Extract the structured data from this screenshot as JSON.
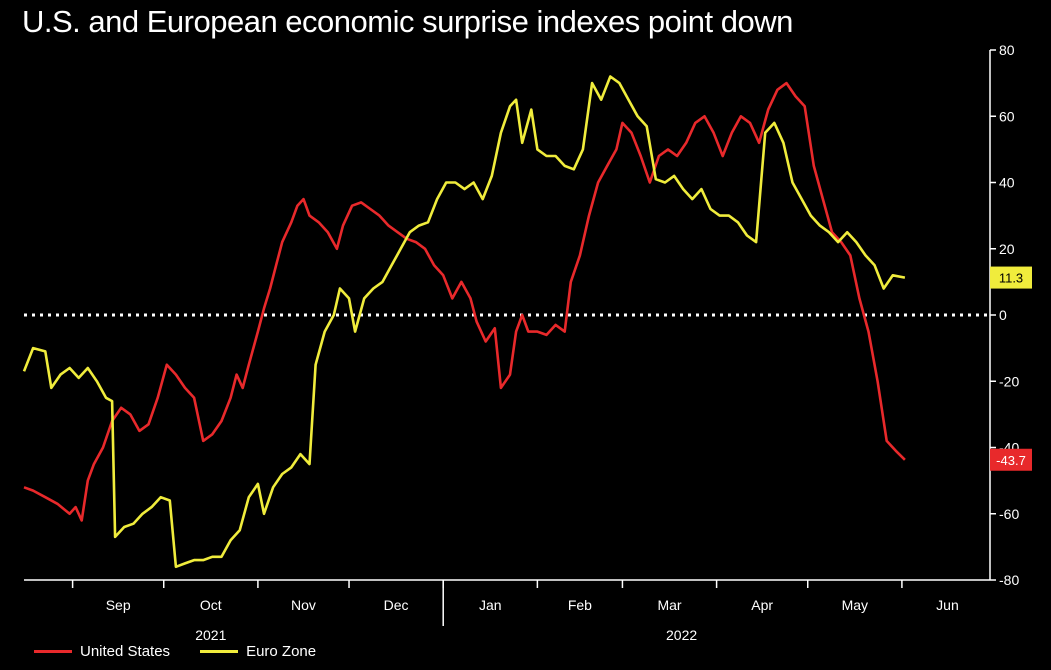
{
  "chart_data": {
    "type": "line",
    "title": "U.S. and European economic surprise indexes point down",
    "xlabel": "",
    "ylabel": "",
    "ylim": [
      -80,
      80
    ],
    "yticks": [
      80,
      60,
      40,
      20,
      0,
      -20,
      -40,
      -60,
      -80
    ],
    "month_ticks": [
      "Sep",
      "Oct",
      "Nov",
      "Dec",
      "Jan",
      "Feb",
      "Mar",
      "Apr",
      "May",
      "Jun"
    ],
    "year_labels": [
      "2021",
      "2022"
    ],
    "zero_line": "dotted",
    "grid": false,
    "legend_position": "bottom-left",
    "series": [
      {
        "name": "United States",
        "color": "#e8292b",
        "last_value_label": "-43.7",
        "points": [
          [
            "2021-08-16",
            -52
          ],
          [
            "2021-08-19",
            -53
          ],
          [
            "2021-08-23",
            -55
          ],
          [
            "2021-08-27",
            -57
          ],
          [
            "2021-08-31",
            -60
          ],
          [
            "2021-09-02",
            -58
          ],
          [
            "2021-09-04",
            -62
          ],
          [
            "2021-09-06",
            -50
          ],
          [
            "2021-09-08",
            -45
          ],
          [
            "2021-09-11",
            -40
          ],
          [
            "2021-09-14",
            -32
          ],
          [
            "2021-09-17",
            -28
          ],
          [
            "2021-09-20",
            -30
          ],
          [
            "2021-09-23",
            -35
          ],
          [
            "2021-09-26",
            -33
          ],
          [
            "2021-09-29",
            -25
          ],
          [
            "2021-10-02",
            -15
          ],
          [
            "2021-10-05",
            -18
          ],
          [
            "2021-10-08",
            -22
          ],
          [
            "2021-10-11",
            -25
          ],
          [
            "2021-10-14",
            -38
          ],
          [
            "2021-10-17",
            -36
          ],
          [
            "2021-10-20",
            -32
          ],
          [
            "2021-10-23",
            -25
          ],
          [
            "2021-10-25",
            -18
          ],
          [
            "2021-10-27",
            -22
          ],
          [
            "2021-10-29",
            -15
          ],
          [
            "2021-11-01",
            -5
          ],
          [
            "2021-11-03",
            2
          ],
          [
            "2021-11-05",
            8
          ],
          [
            "2021-11-07",
            15
          ],
          [
            "2021-11-09",
            22
          ],
          [
            "2021-11-12",
            28
          ],
          [
            "2021-11-14",
            33
          ],
          [
            "2021-11-16",
            35
          ],
          [
            "2021-11-18",
            30
          ],
          [
            "2021-11-21",
            28
          ],
          [
            "2021-11-24",
            25
          ],
          [
            "2021-11-27",
            20
          ],
          [
            "2021-11-29",
            27
          ],
          [
            "2021-12-02",
            33
          ],
          [
            "2021-12-05",
            34
          ],
          [
            "2021-12-08",
            32
          ],
          [
            "2021-12-11",
            30
          ],
          [
            "2021-12-14",
            27
          ],
          [
            "2021-12-17",
            25
          ],
          [
            "2021-12-20",
            23
          ],
          [
            "2021-12-23",
            22
          ],
          [
            "2021-12-26",
            20
          ],
          [
            "2021-12-29",
            15
          ],
          [
            "2022-01-01",
            12
          ],
          [
            "2022-01-04",
            5
          ],
          [
            "2022-01-07",
            10
          ],
          [
            "2022-01-10",
            5
          ],
          [
            "2022-01-12",
            -2
          ],
          [
            "2022-01-15",
            -8
          ],
          [
            "2022-01-18",
            -4
          ],
          [
            "2022-01-20",
            -22
          ],
          [
            "2022-01-23",
            -18
          ],
          [
            "2022-01-25",
            -5
          ],
          [
            "2022-01-27",
            0
          ],
          [
            "2022-01-29",
            -5
          ],
          [
            "2022-02-01",
            -5
          ],
          [
            "2022-02-04",
            -6
          ],
          [
            "2022-02-07",
            -3
          ],
          [
            "2022-02-10",
            -5
          ],
          [
            "2022-02-12",
            10
          ],
          [
            "2022-02-15",
            18
          ],
          [
            "2022-02-18",
            30
          ],
          [
            "2022-02-21",
            40
          ],
          [
            "2022-02-24",
            45
          ],
          [
            "2022-02-27",
            50
          ],
          [
            "2022-03-01",
            58
          ],
          [
            "2022-03-04",
            55
          ],
          [
            "2022-03-07",
            48
          ],
          [
            "2022-03-10",
            40
          ],
          [
            "2022-03-13",
            48
          ],
          [
            "2022-03-16",
            50
          ],
          [
            "2022-03-19",
            48
          ],
          [
            "2022-03-22",
            52
          ],
          [
            "2022-03-25",
            58
          ],
          [
            "2022-03-28",
            60
          ],
          [
            "2022-03-31",
            55
          ],
          [
            "2022-04-03",
            48
          ],
          [
            "2022-04-06",
            55
          ],
          [
            "2022-04-09",
            60
          ],
          [
            "2022-04-12",
            58
          ],
          [
            "2022-04-15",
            52
          ],
          [
            "2022-04-18",
            62
          ],
          [
            "2022-04-21",
            68
          ],
          [
            "2022-04-24",
            70
          ],
          [
            "2022-04-27",
            66
          ],
          [
            "2022-04-30",
            63
          ],
          [
            "2022-05-03",
            45
          ],
          [
            "2022-05-06",
            35
          ],
          [
            "2022-05-09",
            25
          ],
          [
            "2022-05-12",
            22
          ],
          [
            "2022-05-15",
            18
          ],
          [
            "2022-05-18",
            5
          ],
          [
            "2022-05-21",
            -5
          ],
          [
            "2022-05-24",
            -20
          ],
          [
            "2022-05-27",
            -38
          ],
          [
            "2022-05-30",
            -41
          ],
          [
            "2022-06-02",
            -43.7
          ]
        ]
      },
      {
        "name": "Euro Zone",
        "color": "#f0ec3c",
        "last_value_label": "11.3",
        "points": [
          [
            "2021-08-16",
            -17
          ],
          [
            "2021-08-19",
            -10
          ],
          [
            "2021-08-23",
            -11
          ],
          [
            "2021-08-25",
            -22
          ],
          [
            "2021-08-28",
            -18
          ],
          [
            "2021-08-31",
            -16
          ],
          [
            "2021-09-03",
            -19
          ],
          [
            "2021-09-06",
            -16
          ],
          [
            "2021-09-09",
            -20
          ],
          [
            "2021-09-12",
            -25
          ],
          [
            "2021-09-14",
            -26
          ],
          [
            "2021-09-15",
            -67
          ],
          [
            "2021-09-18",
            -64
          ],
          [
            "2021-09-21",
            -63
          ],
          [
            "2021-09-24",
            -60
          ],
          [
            "2021-09-27",
            -58
          ],
          [
            "2021-09-30",
            -55
          ],
          [
            "2021-10-03",
            -56
          ],
          [
            "2021-10-05",
            -76
          ],
          [
            "2021-10-08",
            -75
          ],
          [
            "2021-10-11",
            -74
          ],
          [
            "2021-10-14",
            -74
          ],
          [
            "2021-10-17",
            -73
          ],
          [
            "2021-10-20",
            -73
          ],
          [
            "2021-10-23",
            -68
          ],
          [
            "2021-10-26",
            -65
          ],
          [
            "2021-10-29",
            -55
          ],
          [
            "2021-11-01",
            -51
          ],
          [
            "2021-11-03",
            -60
          ],
          [
            "2021-11-06",
            -52
          ],
          [
            "2021-11-09",
            -48
          ],
          [
            "2021-11-12",
            -46
          ],
          [
            "2021-11-15",
            -42
          ],
          [
            "2021-11-18",
            -45
          ],
          [
            "2021-11-20",
            -15
          ],
          [
            "2021-11-23",
            -5
          ],
          [
            "2021-11-26",
            0
          ],
          [
            "2021-11-28",
            8
          ],
          [
            "2021-12-01",
            5
          ],
          [
            "2021-12-03",
            -5
          ],
          [
            "2021-12-06",
            5
          ],
          [
            "2021-12-09",
            8
          ],
          [
            "2021-12-12",
            10
          ],
          [
            "2021-12-15",
            15
          ],
          [
            "2021-12-18",
            20
          ],
          [
            "2021-12-21",
            25
          ],
          [
            "2021-12-24",
            27
          ],
          [
            "2021-12-27",
            28
          ],
          [
            "2021-12-30",
            35
          ],
          [
            "2022-01-02",
            40
          ],
          [
            "2022-01-05",
            40
          ],
          [
            "2022-01-08",
            38
          ],
          [
            "2022-01-11",
            40
          ],
          [
            "2022-01-14",
            35
          ],
          [
            "2022-01-17",
            42
          ],
          [
            "2022-01-20",
            55
          ],
          [
            "2022-01-23",
            63
          ],
          [
            "2022-01-25",
            65
          ],
          [
            "2022-01-27",
            52
          ],
          [
            "2022-01-30",
            62
          ],
          [
            "2022-02-01",
            50
          ],
          [
            "2022-02-04",
            48
          ],
          [
            "2022-02-07",
            48
          ],
          [
            "2022-02-10",
            45
          ],
          [
            "2022-02-13",
            44
          ],
          [
            "2022-02-16",
            50
          ],
          [
            "2022-02-19",
            70
          ],
          [
            "2022-02-22",
            65
          ],
          [
            "2022-02-25",
            72
          ],
          [
            "2022-02-28",
            70
          ],
          [
            "2022-03-03",
            65
          ],
          [
            "2022-03-06",
            60
          ],
          [
            "2022-03-09",
            57
          ],
          [
            "2022-03-12",
            41
          ],
          [
            "2022-03-15",
            40
          ],
          [
            "2022-03-18",
            42
          ],
          [
            "2022-03-21",
            38
          ],
          [
            "2022-03-24",
            35
          ],
          [
            "2022-03-27",
            38
          ],
          [
            "2022-03-30",
            32
          ],
          [
            "2022-04-02",
            30
          ],
          [
            "2022-04-05",
            30
          ],
          [
            "2022-04-08",
            28
          ],
          [
            "2022-04-11",
            24
          ],
          [
            "2022-04-14",
            22
          ],
          [
            "2022-04-17",
            55
          ],
          [
            "2022-04-20",
            58
          ],
          [
            "2022-04-23",
            52
          ],
          [
            "2022-04-26",
            40
          ],
          [
            "2022-04-29",
            35
          ],
          [
            "2022-05-02",
            30
          ],
          [
            "2022-05-05",
            27
          ],
          [
            "2022-05-08",
            25
          ],
          [
            "2022-05-11",
            22
          ],
          [
            "2022-05-14",
            25
          ],
          [
            "2022-05-17",
            22
          ],
          [
            "2022-05-20",
            18
          ],
          [
            "2022-05-23",
            15
          ],
          [
            "2022-05-26",
            8
          ],
          [
            "2022-05-29",
            12
          ],
          [
            "2022-06-02",
            11.3
          ]
        ]
      }
    ]
  }
}
